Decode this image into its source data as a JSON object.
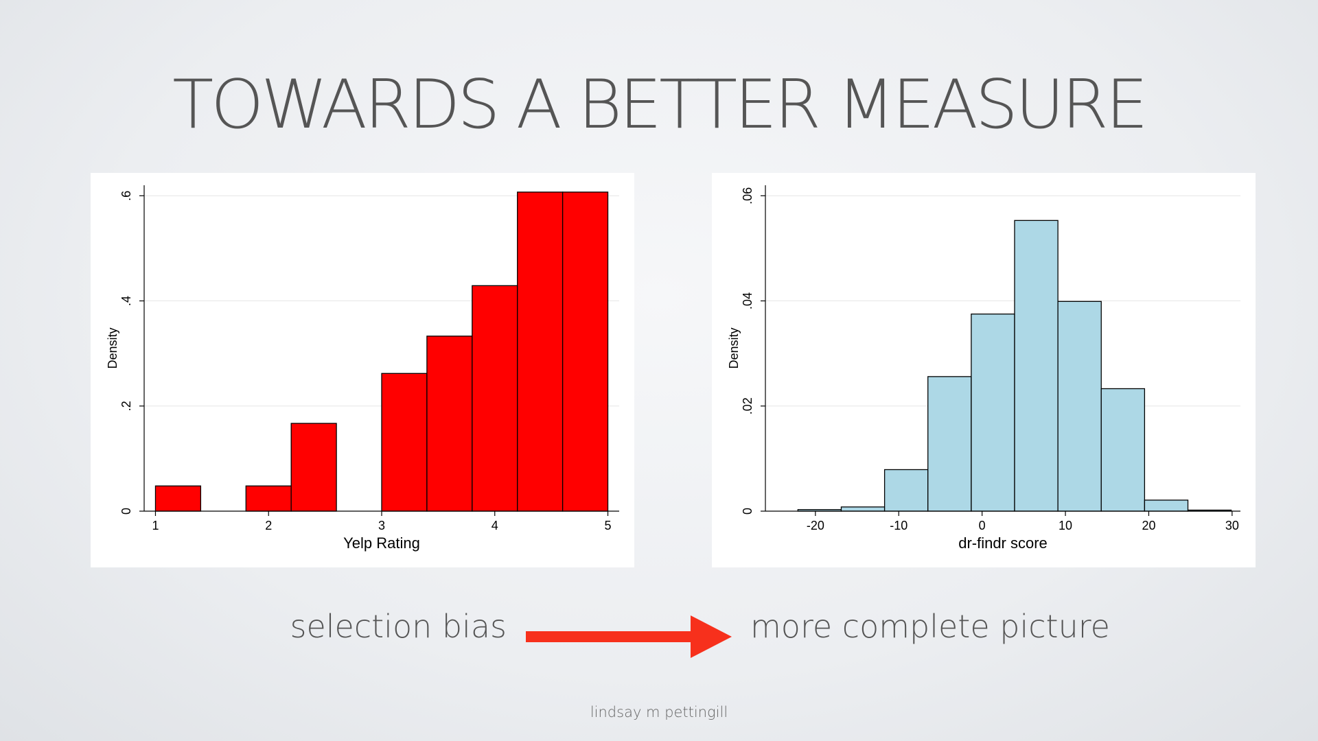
{
  "slide": {
    "title": "TOWARDS A BETTER MEASURE",
    "caption_left": "selection bias",
    "caption_right": "more complete picture",
    "footer": "lindsay m pettingill",
    "arrow_color": "#f7301c"
  },
  "chart_data": [
    {
      "type": "bar",
      "subtype": "histogram",
      "xlabel": "Yelp Rating",
      "ylabel": "Density",
      "xlim": [
        0.9,
        5.1
      ],
      "ylim": [
        0,
        0.62
      ],
      "xticks": [
        1,
        2,
        3,
        4,
        5
      ],
      "xtick_labels": [
        "1",
        "2",
        "3",
        "4",
        "5"
      ],
      "yticks": [
        0,
        0.2,
        0.4,
        0.6
      ],
      "ytick_labels": [
        "0",
        ".2",
        ".4",
        ".6"
      ],
      "grid": true,
      "fill_color": "#ff0000",
      "bins": [
        {
          "x0": 1.0,
          "x1": 1.4,
          "value": 0.048
        },
        {
          "x0": 1.8,
          "x1": 2.2,
          "value": 0.048
        },
        {
          "x0": 2.2,
          "x1": 2.6,
          "value": 0.167
        },
        {
          "x0": 3.0,
          "x1": 3.4,
          "value": 0.262
        },
        {
          "x0": 3.4,
          "x1": 3.8,
          "value": 0.333
        },
        {
          "x0": 3.8,
          "x1": 4.2,
          "value": 0.429
        },
        {
          "x0": 4.2,
          "x1": 4.6,
          "value": 0.607
        },
        {
          "x0": 4.6,
          "x1": 5.0,
          "value": 0.607
        }
      ]
    },
    {
      "type": "bar",
      "subtype": "histogram",
      "xlabel": "dr-findr score",
      "ylabel": "Density",
      "xlim": [
        -26,
        31
      ],
      "ylim": [
        0,
        0.062
      ],
      "xticks": [
        -20,
        -10,
        0,
        10,
        20,
        30
      ],
      "xtick_labels": [
        "-20",
        "-10",
        "0",
        "10",
        "20",
        "30"
      ],
      "yticks": [
        0,
        0.02,
        0.04,
        0.06
      ],
      "ytick_labels": [
        "0",
        ".02",
        ".04",
        ".06"
      ],
      "grid": true,
      "fill_color": "#add8e6",
      "bins": [
        {
          "x0": -22.1,
          "x1": -16.9,
          "value": 0.0003
        },
        {
          "x0": -16.9,
          "x1": -11.7,
          "value": 0.0008
        },
        {
          "x0": -11.7,
          "x1": -6.5,
          "value": 0.0079
        },
        {
          "x0": -6.5,
          "x1": -1.3,
          "value": 0.0256
        },
        {
          "x0": -1.3,
          "x1": 3.9,
          "value": 0.0375
        },
        {
          "x0": 3.9,
          "x1": 9.1,
          "value": 0.0553
        },
        {
          "x0": 9.1,
          "x1": 14.3,
          "value": 0.0399
        },
        {
          "x0": 14.3,
          "x1": 19.5,
          "value": 0.0233
        },
        {
          "x0": 19.5,
          "x1": 24.7,
          "value": 0.0021
        },
        {
          "x0": 24.7,
          "x1": 29.9,
          "value": 0.0002
        }
      ]
    }
  ]
}
